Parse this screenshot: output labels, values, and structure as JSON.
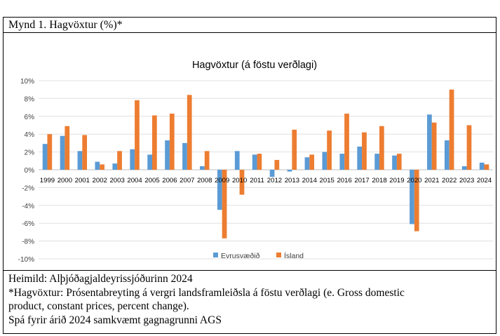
{
  "figure": {
    "caption": "Mynd 1. Hagvöxtur (%)*"
  },
  "chart_data": {
    "type": "bar",
    "title": "Hagvöxtur (á föstu verðlagi)",
    "xlabel": "",
    "ylabel": "",
    "ylim": [
      -10,
      10
    ],
    "yticks": [
      "10%",
      "8%",
      "6%",
      "4%",
      "2%",
      "0%",
      "-2%",
      "-4%",
      "-6%",
      "-8%",
      "-10%"
    ],
    "ytick_values": [
      10,
      8,
      6,
      4,
      2,
      0,
      -2,
      -4,
      -6,
      -8,
      -10
    ],
    "grid": true,
    "legend": "bottom",
    "categories": [
      "1999",
      "2000",
      "2001",
      "2002",
      "2003",
      "2004",
      "2005",
      "2006",
      "2007",
      "2008",
      "2009",
      "2010",
      "2011",
      "2012",
      "2013",
      "2014",
      "2015",
      "2016",
      "2017",
      "2018",
      "2019",
      "2020",
      "2021",
      "2022",
      "2023",
      "2024"
    ],
    "series": [
      {
        "name": "Evrusvæðið",
        "color": "#5B9BD5",
        "values": [
          2.9,
          3.8,
          2.1,
          0.9,
          0.7,
          2.3,
          1.7,
          3.3,
          3.0,
          0.4,
          -4.5,
          2.1,
          1.7,
          -0.8,
          -0.2,
          1.4,
          2.0,
          1.8,
          2.6,
          1.8,
          1.6,
          -6.1,
          6.2,
          3.3,
          0.4,
          0.8
        ]
      },
      {
        "name": "Ísland",
        "color": "#ED7D31",
        "values": [
          4.0,
          4.9,
          3.9,
          0.6,
          2.1,
          7.8,
          6.1,
          6.3,
          8.4,
          2.1,
          -7.7,
          -2.8,
          1.8,
          1.1,
          4.5,
          1.7,
          4.4,
          6.3,
          4.2,
          4.9,
          1.8,
          -6.9,
          5.3,
          9.0,
          5.0,
          0.6
        ]
      }
    ]
  },
  "notes": {
    "source": "Heimild: Alþjóðagjaldeyrissjóðurinn 2024",
    "definition_line1": "*Hagvöxtur: Prósentabreyting á vergri landsframleiðsla á föstu verðlagi (e. Gross domestic",
    "definition_line2": "product, constant prices, percent change).",
    "forecast": "Spá fyrir árið 2024 samkvæmt gagnagrunni AGS"
  }
}
